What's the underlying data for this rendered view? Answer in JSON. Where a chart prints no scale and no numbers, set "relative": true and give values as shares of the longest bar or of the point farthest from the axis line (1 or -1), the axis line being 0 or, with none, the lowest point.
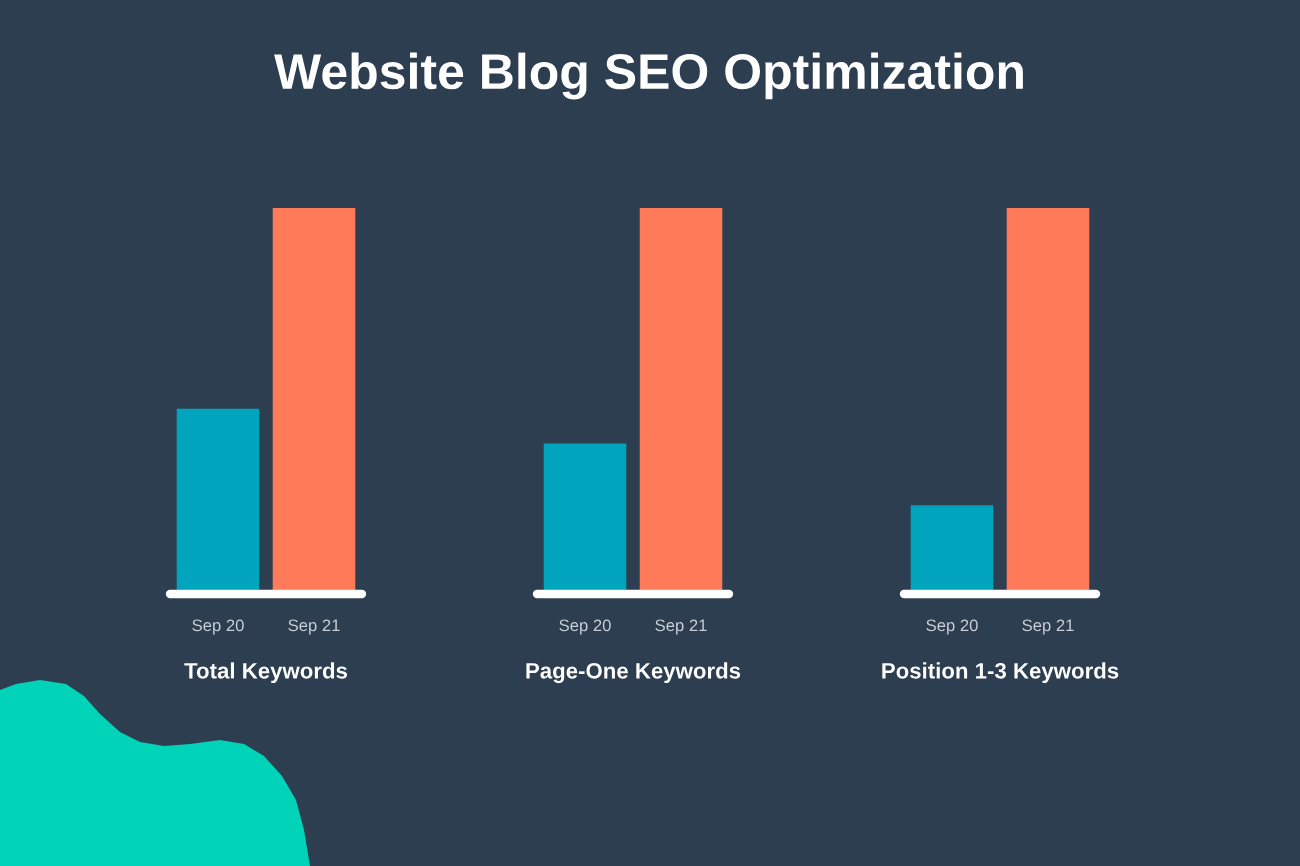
{
  "chart_data": [
    {
      "type": "bar",
      "title": "Website Blog SEO Optimization",
      "xlabel": "Total Keywords",
      "categories": [
        "Sep 20",
        "Sep 21"
      ],
      "values": [
        0.48,
        1
      ],
      "colors": [
        "#00a4bd",
        "#ff7a59"
      ],
      "relative": true
    },
    {
      "type": "bar",
      "xlabel": "Page-One Keywords",
      "categories": [
        "Sep 20",
        "Sep 21"
      ],
      "values": [
        0.39,
        1
      ],
      "colors": [
        "#00a4bd",
        "#ff7a59"
      ],
      "relative": true
    },
    {
      "type": "bar",
      "xlabel": "Position 1-3 Keywords",
      "categories": [
        "Sep 20",
        "Sep 21"
      ],
      "values": [
        0.23,
        1
      ],
      "colors": [
        "#00a4bd",
        "#ff7a59"
      ],
      "relative": true
    }
  ]
}
